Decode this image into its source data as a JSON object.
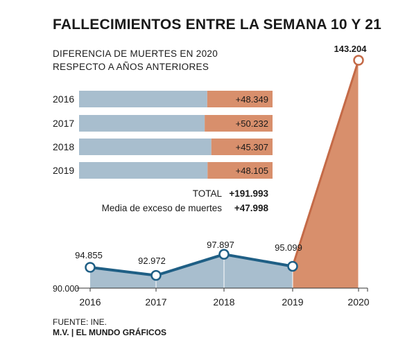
{
  "title": "FALLECIMIENTOS ENTRE LA SEMANA 10 Y 21",
  "subtitle_line1": "DIFERENCIA DE MUERTES EN 2020",
  "subtitle_line2": "RESPECTO A AÑOS ANTERIORES",
  "footer": {
    "source": "FUENTE: INE.",
    "credit": "M.V. | EL MUNDO GRÁFICOS"
  },
  "colors": {
    "blue_fill": "#a8bece",
    "blue_line": "#1f5f85",
    "orange": "#d88f6c",
    "orange_dark": "#c46a47"
  },
  "chart_data": [
    {
      "type": "bar",
      "orientation": "horizontal",
      "categories": [
        "2016",
        "2017",
        "2018",
        "2019"
      ],
      "series": [
        {
          "values": [
            143204,
            143204,
            143204,
            143204
          ]
        },
        {
          "values": [
            48349,
            50232,
            45307,
            48105
          ]
        }
      ],
      "data_labels": [
        "+48.349",
        "+50.232",
        "+45.307",
        "+48.105"
      ],
      "total_label": "TOTAL",
      "total_value": "+191.993",
      "mean_label": "Media de exceso de muertes",
      "mean_value": "+47.998"
    },
    {
      "type": "area",
      "x": [
        "2016",
        "2017",
        "2018",
        "2019",
        "2020"
      ],
      "values": [
        94855,
        92972,
        97897,
        95099,
        143204
      ],
      "data_labels": [
        "94.855",
        "92.972",
        "97.897",
        "95.099",
        "143.204"
      ],
      "y_baseline_label": "90.000",
      "ylim": [
        90000,
        143204
      ]
    }
  ]
}
